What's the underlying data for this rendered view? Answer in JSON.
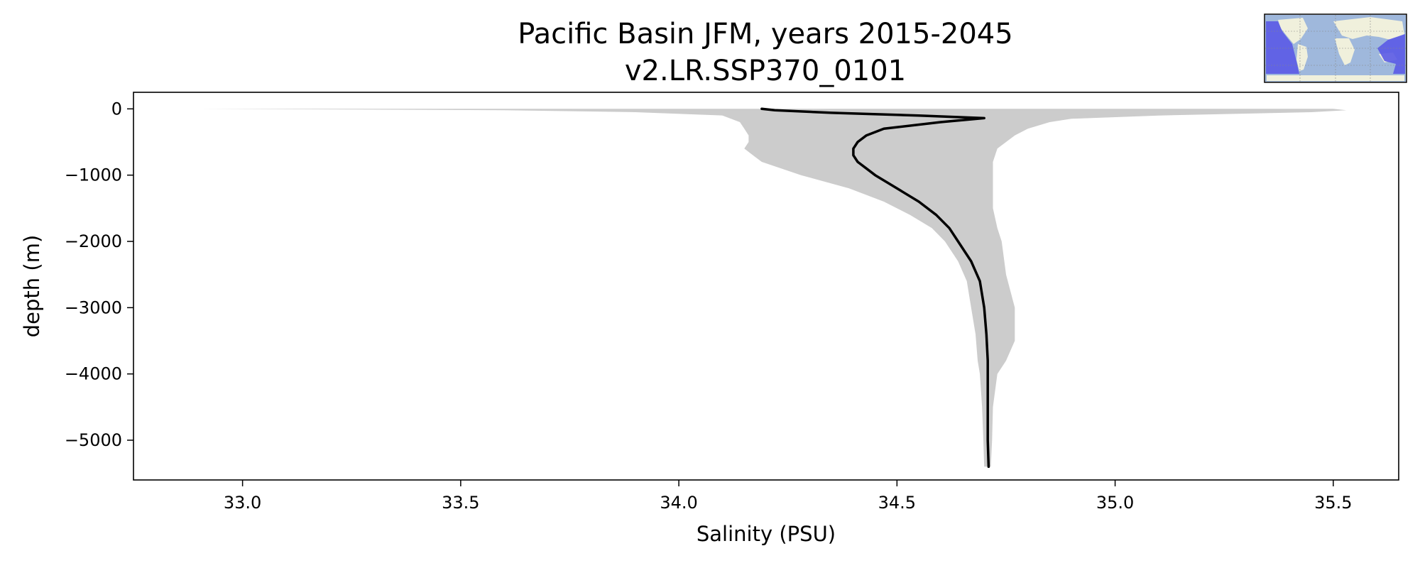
{
  "chart_data": {
    "type": "line",
    "title": "Pacific Basin JFM, years 2015-2045",
    "subtitle": "v2.LR.SSP370_0101",
    "xlabel": "Salinity (PSU)",
    "ylabel": "depth (m)",
    "xlim": [
      32.75,
      35.65
    ],
    "ylim": [
      -5600,
      250
    ],
    "xticks": [
      33.0,
      33.5,
      34.0,
      34.5,
      35.0,
      35.5
    ],
    "xtick_labels": [
      "33.0",
      "33.5",
      "34.0",
      "34.5",
      "35.0",
      "35.5"
    ],
    "yticks": [
      0,
      -1000,
      -2000,
      -3000,
      -4000,
      -5000
    ],
    "ytick_labels": [
      "0",
      "−1000",
      "−2000",
      "−3000",
      "−4000",
      "−5000"
    ],
    "grid": false,
    "colors": {
      "mean_line": "#000000",
      "range_band": "#cccccc",
      "map_ocean": "#6b6bf0",
      "map_land": "#f0f0dc",
      "map_region": "#5a5ae6"
    },
    "series": [
      {
        "role": "mean",
        "depth": [
          0,
          -20,
          -60,
          -100,
          -140,
          -200,
          -300,
          -400,
          -500,
          -600,
          -700,
          -800,
          -900,
          -1000,
          -1200,
          -1400,
          -1600,
          -1800,
          -2000,
          -2300,
          -2600,
          -3000,
          -3400,
          -3800,
          -4200,
          -4600,
          -5000,
          -5400
        ],
        "values": [
          34.19,
          34.22,
          34.35,
          34.55,
          34.7,
          34.6,
          34.47,
          34.43,
          34.41,
          34.4,
          34.4,
          34.41,
          34.43,
          34.45,
          34.5,
          34.55,
          34.59,
          34.62,
          34.64,
          34.67,
          34.69,
          34.7,
          34.705,
          34.708,
          34.708,
          34.708,
          34.708,
          34.71
        ]
      },
      {
        "role": "min",
        "depth": [
          0,
          -20,
          -50,
          -100,
          -200,
          -300,
          -400,
          -500,
          -600,
          -700,
          -800,
          -1000,
          -1200,
          -1400,
          -1600,
          -1800,
          -2000,
          -2300,
          -2600,
          -3000,
          -3400,
          -3800,
          -4000,
          -4500,
          -5000,
          -5400
        ],
        "values": [
          32.9,
          33.6,
          33.9,
          34.1,
          34.14,
          34.15,
          34.16,
          34.16,
          34.15,
          34.17,
          34.19,
          34.28,
          34.39,
          34.47,
          34.53,
          34.58,
          34.61,
          34.64,
          34.66,
          34.67,
          34.68,
          34.685,
          34.69,
          34.695,
          34.698,
          34.7
        ]
      },
      {
        "role": "max",
        "depth": [
          0,
          -20,
          -50,
          -100,
          -150,
          -200,
          -300,
          -400,
          -500,
          -600,
          -800,
          -1000,
          -1200,
          -1500,
          -1800,
          -2000,
          -2500,
          -3000,
          -3500,
          -3800,
          -4000,
          -4500,
          -5000,
          -5400
        ],
        "values": [
          35.5,
          35.53,
          35.45,
          35.1,
          34.9,
          34.85,
          34.8,
          34.77,
          34.75,
          34.73,
          34.72,
          34.72,
          34.72,
          34.72,
          34.73,
          34.74,
          34.75,
          34.77,
          34.77,
          34.75,
          34.73,
          34.72,
          34.718,
          34.715
        ]
      }
    ]
  }
}
